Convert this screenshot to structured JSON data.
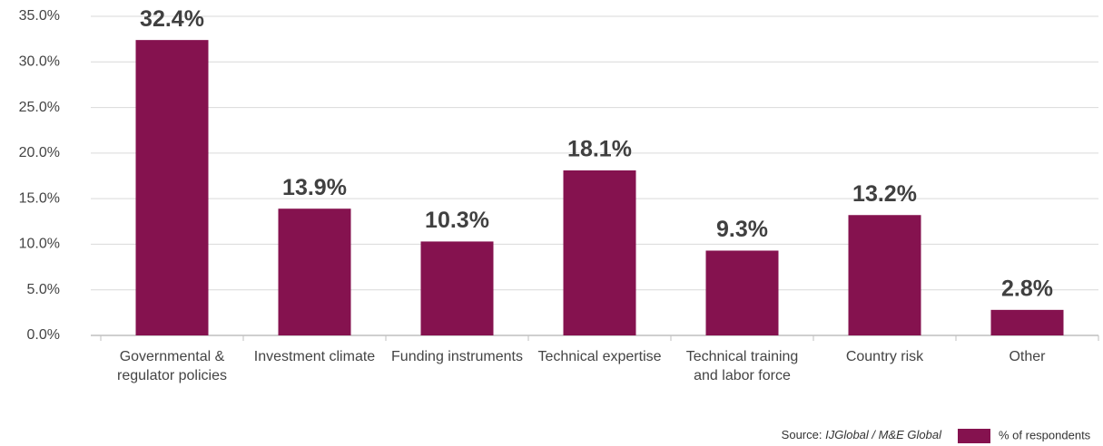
{
  "chart_data": {
    "type": "bar",
    "categories": [
      "Governmental & regulator policies",
      "Investment climate",
      "Funding instruments",
      "Technical expertise",
      "Technical training and labor force",
      "Country risk",
      "Other"
    ],
    "series": [
      {
        "name": "% of respondents",
        "color": "#85124f",
        "values": [
          32.4,
          13.9,
          10.3,
          18.1,
          9.3,
          13.2,
          2.8
        ],
        "value_labels": [
          "32.4%",
          "13.9%",
          "10.3%",
          "18.1%",
          "9.3%",
          "13.2%",
          "2.8%"
        ]
      }
    ],
    "ylim": [
      0,
      35
    ],
    "yticks": [
      {
        "value": 0,
        "label": "0.0%"
      },
      {
        "value": 5,
        "label": "5.0%"
      },
      {
        "value": 10,
        "label": "10.0%"
      },
      {
        "value": 15,
        "label": "15.0%"
      },
      {
        "value": 20,
        "label": "20.0%"
      },
      {
        "value": 25,
        "label": "25.0%"
      },
      {
        "value": 30,
        "label": "30.0%"
      },
      {
        "value": 35,
        "label": "35.0%"
      }
    ],
    "grid": true,
    "source_label": "Source:",
    "source": "IJGlobal / M&E Global"
  }
}
